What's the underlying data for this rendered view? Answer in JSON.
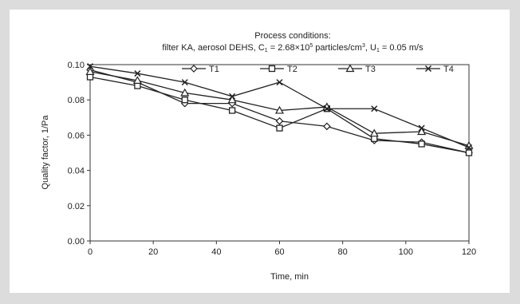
{
  "chart_data": {
    "type": "line",
    "title_line1": "Process conditions:",
    "title_line2_prefix": "filter KA, aerosol DEHS, C",
    "title_line2_sub1": "1",
    "title_line2_mid": " = 2.68×10",
    "title_line2_sup1": "5",
    "title_line2_mid2": " particles/cm",
    "title_line2_sup2": "3",
    "title_line2_mid3": ", U",
    "title_line2_sub2": "1",
    "title_line2_end": " = 0.05 m/s",
    "xlabel": "Time, min",
    "ylabel": "Quality factor, 1/Pa",
    "xlim": [
      0,
      120
    ],
    "ylim": [
      0.0,
      0.1
    ],
    "x_ticks": [
      "0",
      "20",
      "40",
      "60",
      "80",
      "100",
      "120"
    ],
    "y_ticks": [
      "0.00",
      "0.02",
      "0.04",
      "0.06",
      "0.08",
      "0.10"
    ],
    "legend_position": "top-center",
    "x": [
      0,
      15,
      30,
      45,
      60,
      75,
      90,
      105,
      120
    ],
    "series": [
      {
        "name": "T1",
        "marker": "diamond",
        "values": [
          0.097,
          0.09,
          0.078,
          0.078,
          0.068,
          0.065,
          0.057,
          0.056,
          0.05
        ]
      },
      {
        "name": "T2",
        "marker": "square",
        "values": [
          0.093,
          0.088,
          0.08,
          0.074,
          0.064,
          0.075,
          0.058,
          0.055,
          0.05
        ]
      },
      {
        "name": "T3",
        "marker": "triangle",
        "values": [
          0.096,
          0.091,
          0.084,
          0.08,
          0.074,
          0.076,
          0.061,
          0.062,
          0.054
        ]
      },
      {
        "name": "T4",
        "marker": "x",
        "values": [
          0.099,
          0.095,
          0.09,
          0.082,
          0.09,
          0.075,
          0.075,
          0.064,
          0.053
        ]
      }
    ]
  }
}
